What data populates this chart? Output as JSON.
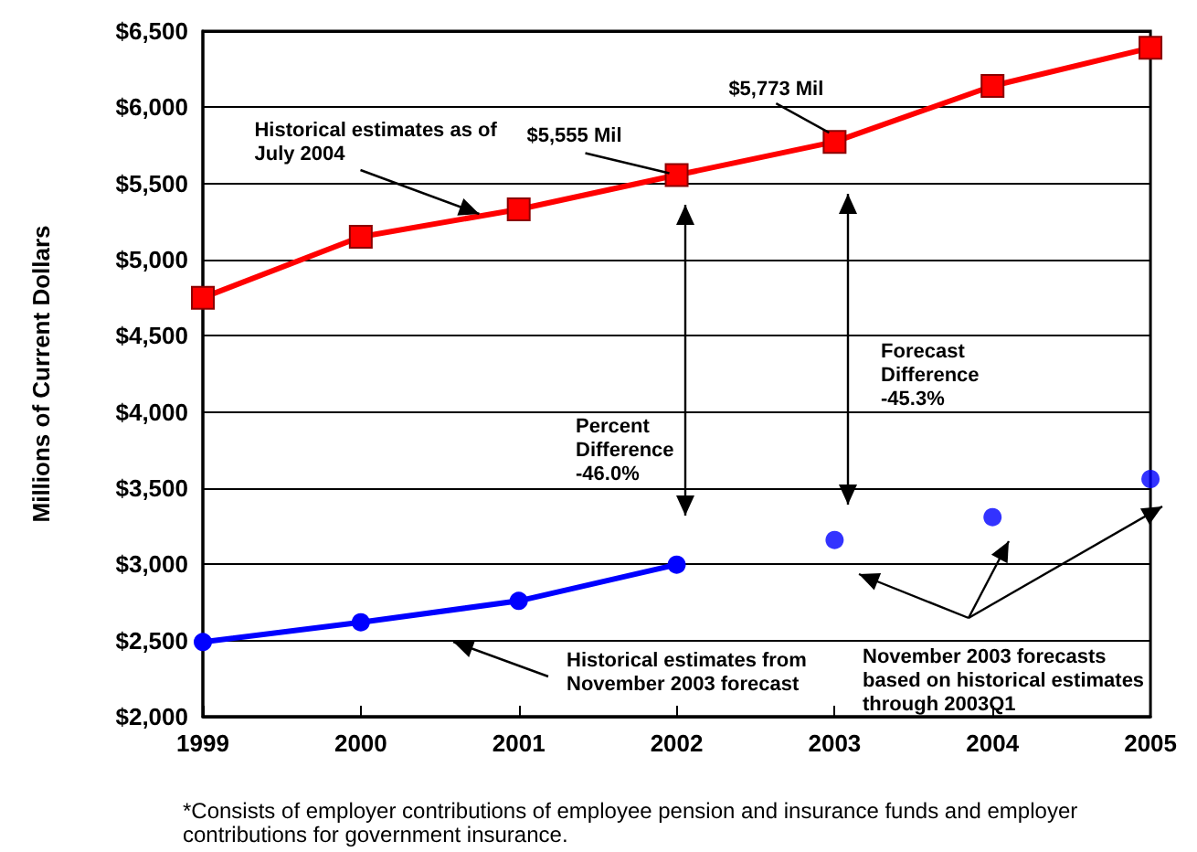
{
  "chart_data": {
    "type": "line",
    "ylabel": "Millions of Current Dollars",
    "x": [
      1999,
      2000,
      2001,
      2002,
      2003,
      2004,
      2005
    ],
    "series": [
      {
        "color": "#ff0000",
        "marker": "square",
        "values": [
          4750,
          5150,
          5330,
          5555,
          5773,
          6140,
          6390
        ]
      },
      {
        "color": "#0000ff",
        "marker": "circle",
        "x": [
          1999,
          2000,
          2001,
          2002
        ],
        "values": [
          2490,
          2620,
          2760,
          2998
        ]
      },
      {
        "type": "scatter",
        "color": "#0000ff",
        "marker": "circle",
        "x": [
          2003,
          2004,
          2005
        ],
        "values": [
          3160,
          3310,
          3560
        ]
      }
    ],
    "xlim": [
      1999,
      2005
    ],
    "xticks": [
      1999,
      2000,
      2001,
      2002,
      2003,
      2004,
      2005
    ],
    "ylim": [
      2000,
      6500
    ],
    "yticks": [
      {
        "value": 2000,
        "label": "$2,000"
      },
      {
        "value": 2500,
        "label": "$2,500"
      },
      {
        "value": 3000,
        "label": "$3,000"
      },
      {
        "value": 3500,
        "label": "$3,500"
      },
      {
        "value": 4000,
        "label": "$4,000"
      },
      {
        "value": 4500,
        "label": "$4,500"
      },
      {
        "value": 5000,
        "label": "$5,000"
      },
      {
        "value": 5500,
        "label": "$5,500"
      },
      {
        "value": 6000,
        "label": "$6,000"
      },
      {
        "value": 6500,
        "label": "$6,500"
      }
    ],
    "grid": "y",
    "line_style": "solid",
    "annotations": [
      {
        "text": "Historical estimates as of\nJuly 2004",
        "x": 2000.75,
        "y": 5300
      },
      {
        "text": "$5,555 Mil",
        "x": 2002,
        "y": 5555
      },
      {
        "text": "$5,773 Mil",
        "x": 2003,
        "y": 5773
      },
      "Percent\nDifference\n-46.0%",
      "Forecast\nDifference\n-45.3%",
      "Historical estimates from\nNovember 2003 forecast",
      "November 2003 forecasts\nbased on historical estimates\nthrough 2003Q1",
      "*Consists of employer contributions of employee pension and insurance funds and employer contributions for government insurance."
    ]
  }
}
